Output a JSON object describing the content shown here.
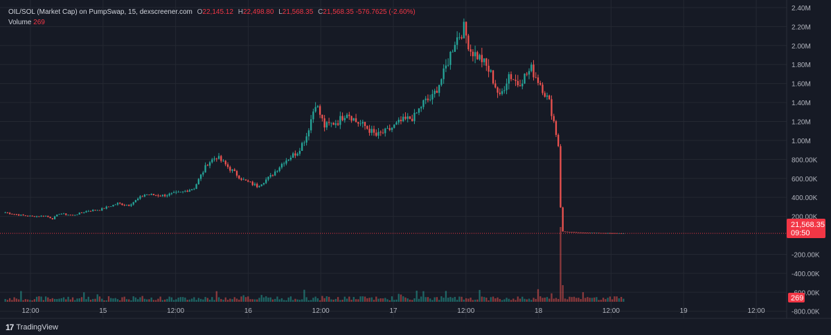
{
  "legend": {
    "symbol": "OIL/SOL (Market Cap) on PumpSwap, 15, dexscreener.com",
    "o_label": "O",
    "o": "22,145.12",
    "h_label": "H",
    "h": "22,498.80",
    "l_label": "L",
    "l": "21,568.35",
    "c_label": "C",
    "c": "21,568.35",
    "change": "-576.7625 (-2.60%)",
    "volume_label": "Volume",
    "volume": "269"
  },
  "colors": {
    "up": "#26a69a",
    "down": "#ef5350",
    "background": "#161a25",
    "grid": "#242832",
    "price_badge": "#f23645"
  },
  "price_badge": {
    "value": "21,568.35",
    "time": "09:50"
  },
  "volume_badge": "269",
  "brand": {
    "logo_text": "17",
    "name": "TradingView"
  },
  "chart_data": {
    "type": "candlestick",
    "x_ticks": [
      "12:00",
      "15",
      "12:00",
      "16",
      "12:00",
      "17",
      "12:00",
      "18",
      "12:00",
      "19",
      "12:00"
    ],
    "y_ticks": [
      "2.40M",
      "2.20M",
      "2.00M",
      "1.80M",
      "1.60M",
      "1.40M",
      "1.20M",
      "1.00M",
      "800.00K",
      "600.00K",
      "400.00K",
      "200.00K",
      "-200.00K",
      "-400.00K",
      "-600.00K",
      "-800.00K"
    ],
    "ylim": [
      -875000,
      2480000
    ],
    "grid": true,
    "current_price": 21568.35,
    "approx_close_path": [
      [
        0,
        240000
      ],
      [
        6,
        215000
      ],
      [
        12,
        200000
      ],
      [
        18,
        205000
      ],
      [
        21,
        175000
      ],
      [
        24,
        230000
      ],
      [
        30,
        210000
      ],
      [
        37,
        260000
      ],
      [
        42,
        270000
      ],
      [
        50,
        335000
      ],
      [
        55,
        320000
      ],
      [
        62,
        430000
      ],
      [
        70,
        420000
      ],
      [
        78,
        450000
      ],
      [
        84,
        500000
      ],
      [
        90,
        760000
      ],
      [
        94,
        830000
      ],
      [
        100,
        700000
      ],
      [
        106,
        580000
      ],
      [
        112,
        520000
      ],
      [
        118,
        620000
      ],
      [
        124,
        780000
      ],
      [
        130,
        880000
      ],
      [
        134,
        1050000
      ],
      [
        138,
        1400000
      ],
      [
        142,
        1150000
      ],
      [
        148,
        1200000
      ],
      [
        152,
        1300000
      ],
      [
        156,
        1200000
      ],
      [
        160,
        1150000
      ],
      [
        165,
        1050000
      ],
      [
        170,
        1100000
      ],
      [
        176,
        1200000
      ],
      [
        182,
        1250000
      ],
      [
        186,
        1400000
      ],
      [
        190,
        1450000
      ],
      [
        195,
        1700000
      ],
      [
        200,
        2050000
      ],
      [
        204,
        2180000
      ],
      [
        207,
        1950000
      ],
      [
        212,
        1850000
      ],
      [
        216,
        1700000
      ],
      [
        220,
        1450000
      ],
      [
        224,
        1700000
      ],
      [
        228,
        1600000
      ],
      [
        234,
        1750000
      ],
      [
        238,
        1600000
      ],
      [
        242,
        1400000
      ],
      [
        244,
        1200000
      ],
      [
        246,
        950000
      ],
      [
        247,
        300000
      ],
      [
        248,
        40000
      ],
      [
        255,
        30000
      ],
      [
        264,
        25000
      ],
      [
        275,
        21568
      ]
    ],
    "volume_panel": {
      "last_volume": 269,
      "largest_spike_at_candle": 247
    }
  }
}
